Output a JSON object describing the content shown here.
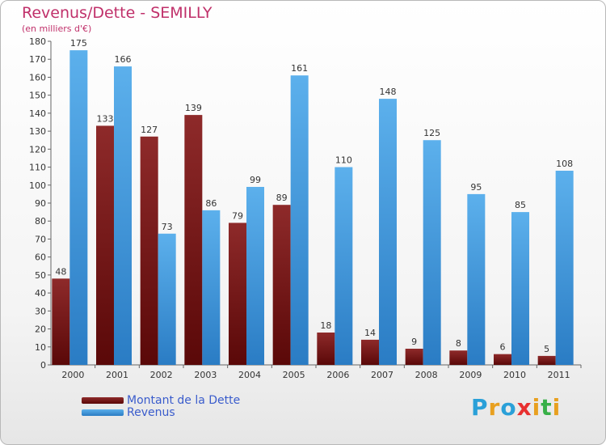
{
  "title": "Revenus/Dette - SEMILLY",
  "subtitle": "(en milliers d'€)",
  "logo": {
    "text": "Proxiti",
    "letter_colors": [
      "#2aa0d8",
      "#e8a020",
      "#2aa0d8",
      "#e83030",
      "#e8a020",
      "#38b048",
      "#e8a020"
    ]
  },
  "chart_data": {
    "type": "bar",
    "categories": [
      "2000",
      "2001",
      "2002",
      "2003",
      "2004",
      "2005",
      "2006",
      "2007",
      "2008",
      "2009",
      "2010",
      "2011"
    ],
    "series": [
      {
        "name": "Montant de la Dette",
        "color": "#7a1414",
        "values": [
          48,
          133,
          127,
          139,
          79,
          89,
          18,
          14,
          9,
          8,
          6,
          5
        ]
      },
      {
        "name": "Revenus",
        "color": "#3f96d8",
        "values": [
          175,
          166,
          73,
          86,
          99,
          161,
          110,
          148,
          125,
          95,
          85,
          108
        ]
      }
    ],
    "ylim": [
      0,
      180
    ],
    "ytick_step": 10,
    "grid": false,
    "legend_position": "bottom-left"
  }
}
